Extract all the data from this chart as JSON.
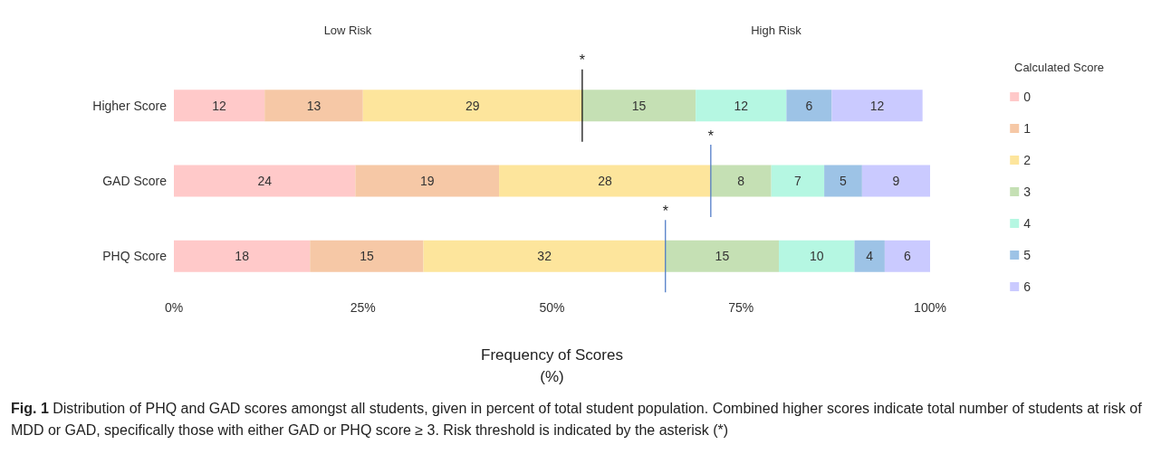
{
  "chart_data": {
    "type": "bar",
    "orientation": "horizontal",
    "stacked": true,
    "data_labels": true,
    "categories": [
      "Higher Score",
      "GAD Score",
      "PHQ Score"
    ],
    "series": [
      {
        "name": "0",
        "color": "#ffc9c9",
        "values": [
          12,
          24,
          18
        ]
      },
      {
        "name": "1",
        "color": "#f6c8a6",
        "values": [
          13,
          19,
          15
        ]
      },
      {
        "name": "2",
        "color": "#fde59c",
        "values": [
          29,
          28,
          32
        ]
      },
      {
        "name": "3",
        "color": "#c5e0b4",
        "values": [
          15,
          8,
          15
        ]
      },
      {
        "name": "4",
        "color": "#b5f7e2",
        "values": [
          12,
          7,
          10
        ]
      },
      {
        "name": "5",
        "color": "#9dc3e6",
        "values": [
          6,
          5,
          4
        ]
      },
      {
        "name": "6",
        "color": "#cacaff",
        "values": [
          12,
          9,
          6
        ]
      }
    ],
    "xlim": [
      0,
      100
    ],
    "xticks": [
      {
        "value": 0,
        "label": "0%"
      },
      {
        "value": 25,
        "label": "25%"
      },
      {
        "value": 50,
        "label": "50%"
      },
      {
        "value": 75,
        "label": "75%"
      },
      {
        "value": 100,
        "label": "100%"
      }
    ],
    "xlabel": "Frequency of Scores\n(%)",
    "legend": "right",
    "legend_title": "Calculated Score",
    "grid": false,
    "ref_lines": [
      {
        "axis": "x",
        "value": 54,
        "label": "*",
        "color": "#000000"
      },
      {
        "axis": "x",
        "value": 71,
        "label": "*",
        "color": "#4472c4"
      },
      {
        "axis": "x",
        "value": 65,
        "label": "*",
        "color": "#4472c4"
      }
    ],
    "annotations": [
      "Low Risk",
      "High Risk",
      "Fig. 1  Distribution of PHQ and GAD scores amongst all students, given in percent of total student population. Combined higher scores indicate total number of students at risk of MDD or GAD, specifically those with either GAD or PHQ score ≥ 3. Risk threshold is indicated by the asterisk (*)"
    ]
  }
}
